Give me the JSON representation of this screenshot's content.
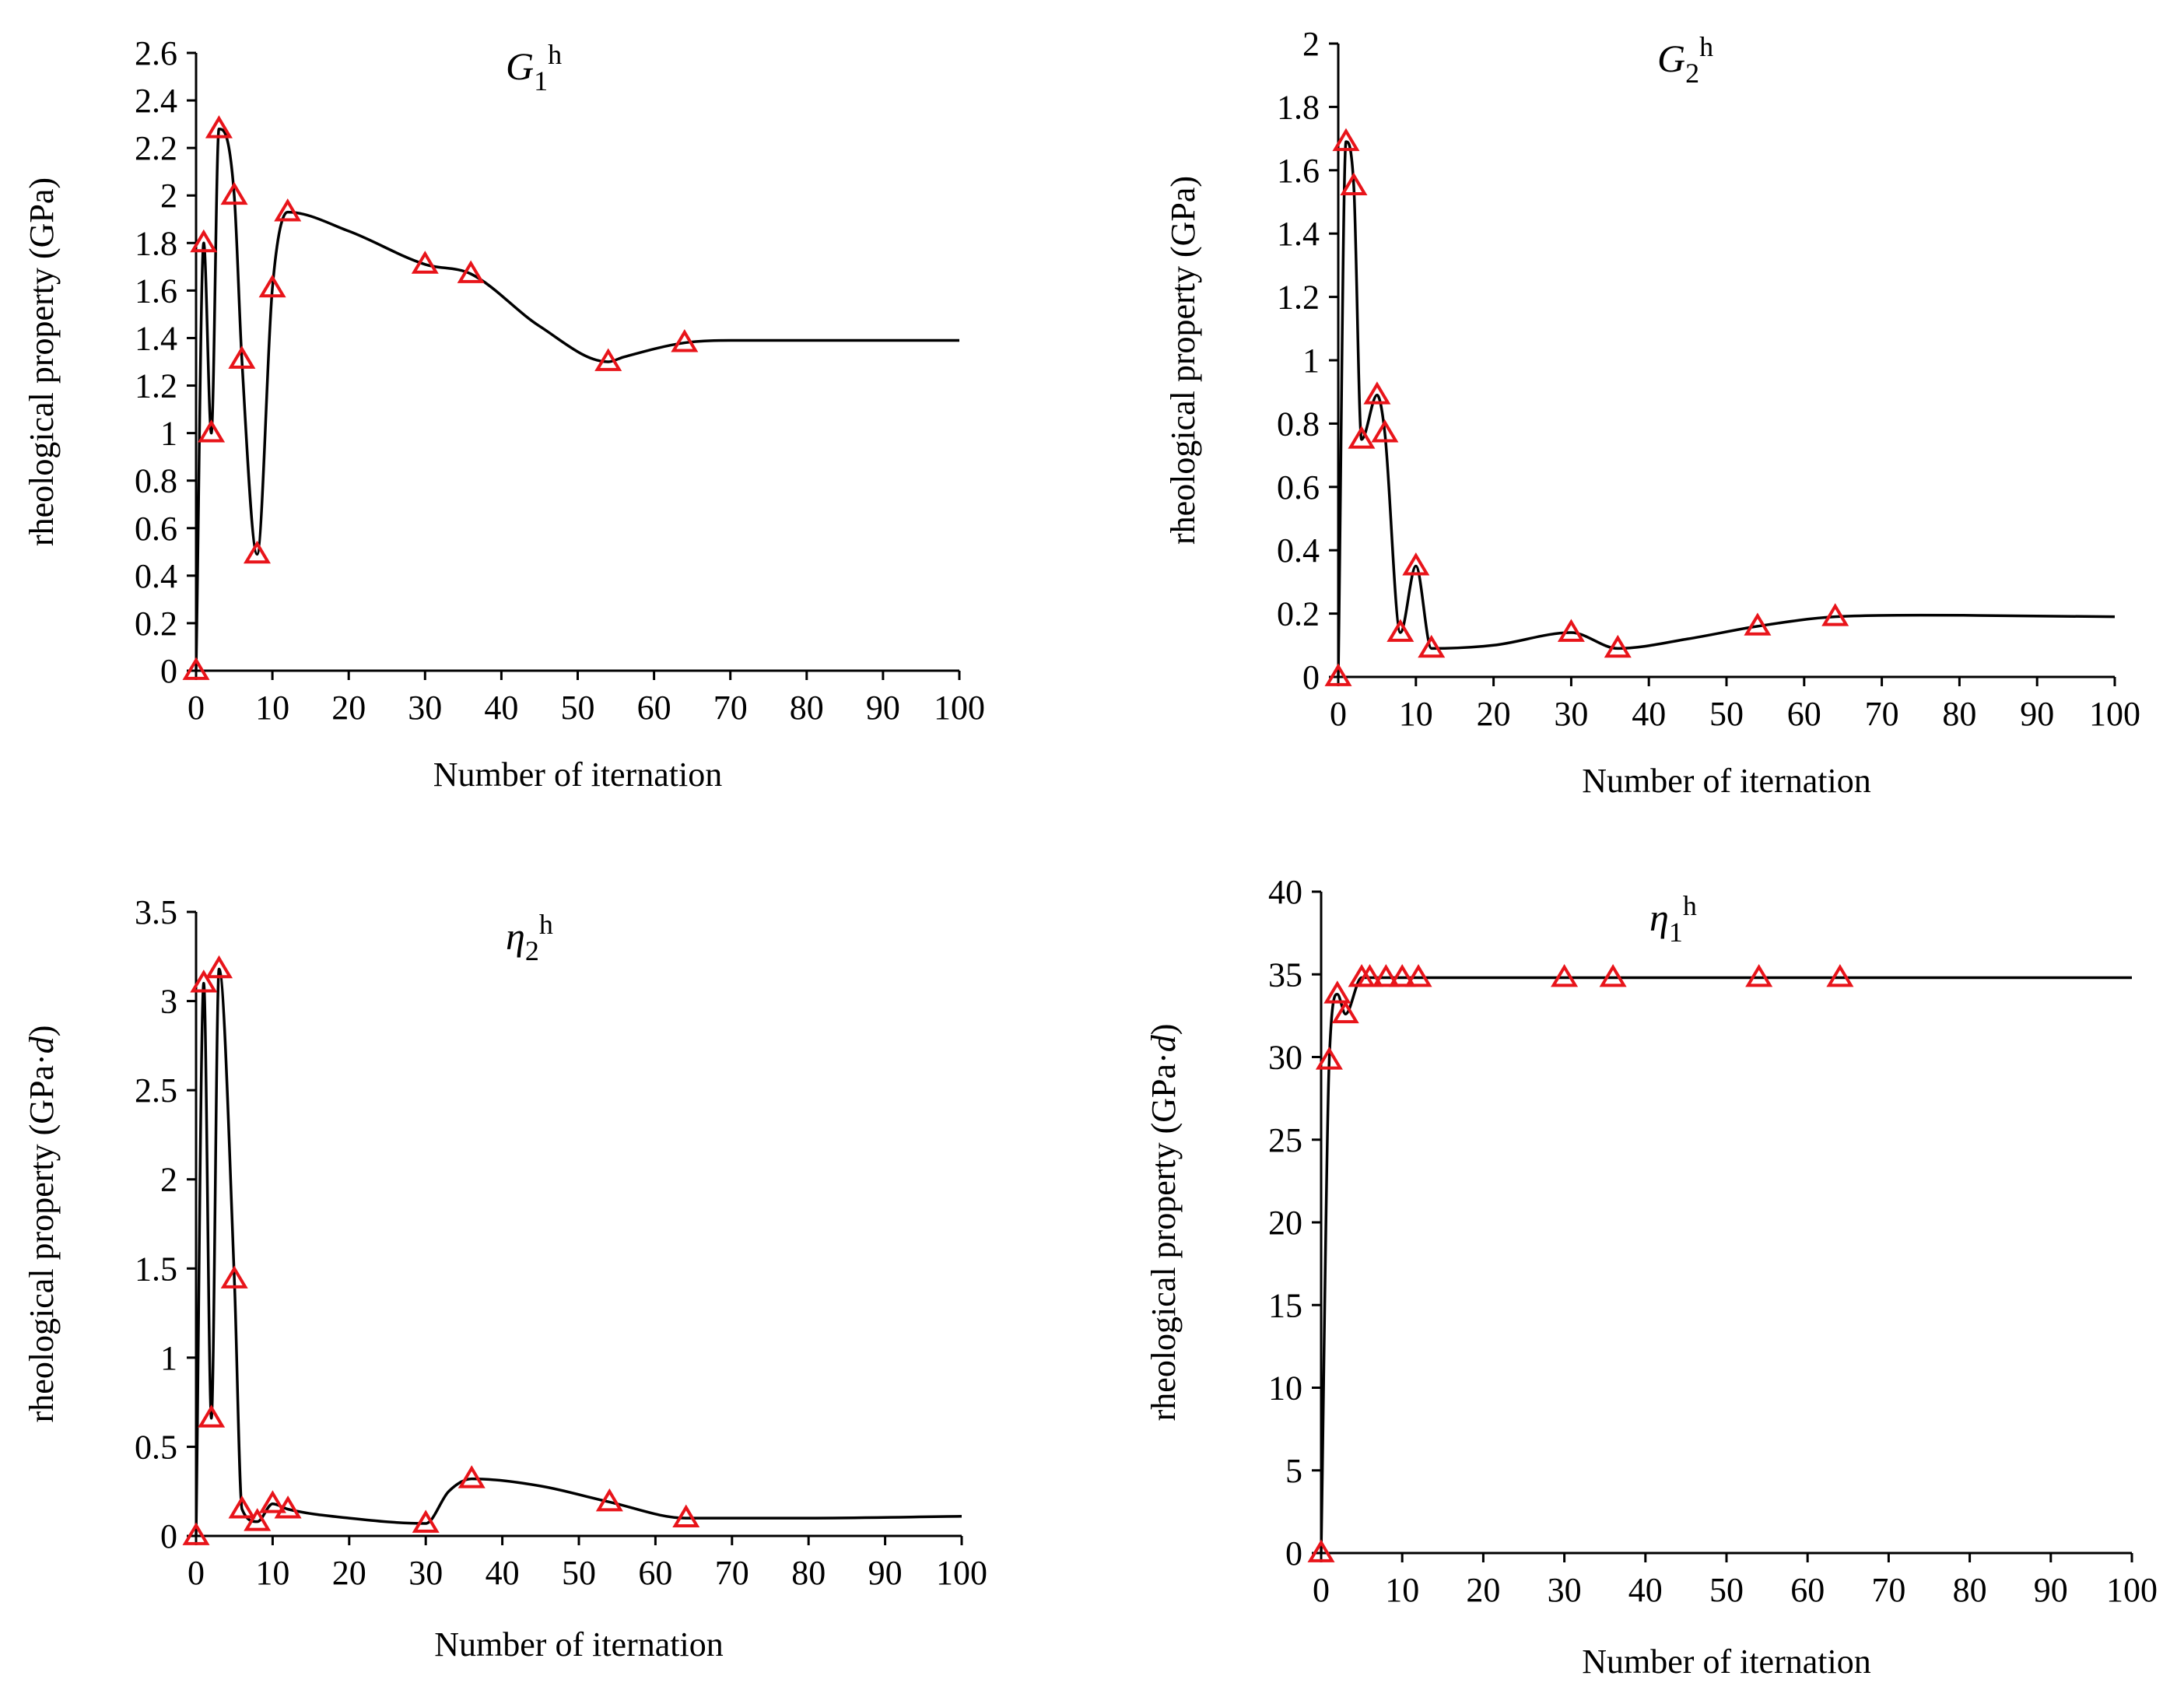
{
  "chart_data": [
    {
      "type": "line",
      "title": "G1h",
      "title_parts": {
        "symbol": "G",
        "subscript": "1",
        "superscript": "h"
      },
      "xlabel": "Number of iternation",
      "ylabel": "rheological property (GPa)",
      "xlim": [
        0,
        100
      ],
      "ylim": [
        0,
        2.6
      ],
      "xticks": [
        "0",
        "10",
        "20",
        "30",
        "40",
        "50",
        "60",
        "70",
        "80",
        "90",
        "100"
      ],
      "yticks": [
        "0",
        "0.2",
        "0.4",
        "0.6",
        "0.8",
        "1",
        "1.2",
        "1.4",
        "1.6",
        "1.8",
        "2",
        "2.2",
        "2.4",
        "2.6"
      ],
      "series": [
        {
          "name": "G1h",
          "marker": "triangle",
          "marker_color": "#e8141a",
          "line_color": "#000000",
          "points": {
            "x": [
              0,
              1,
              2,
              3,
              5,
              6,
              8,
              10,
              12,
              30,
              36,
              54,
              64
            ],
            "y": [
              0,
              1.8,
              1.0,
              2.28,
              2.0,
              1.31,
              0.49,
              1.61,
              1.93,
              1.71,
              1.67,
              1.3,
              1.38
            ]
          },
          "line": {
            "x": [
              0,
              1,
              2,
              3,
              5,
              6,
              8,
              10,
              12,
              20,
              30,
              36,
              45,
              54,
              56,
              64,
              70,
              80,
              90,
              100
            ],
            "y": [
              0,
              1.8,
              1.0,
              2.28,
              2.0,
              1.31,
              0.49,
              1.61,
              1.93,
              1.85,
              1.71,
              1.67,
              1.45,
              1.3,
              1.32,
              1.38,
              1.39,
              1.39,
              1.39,
              1.39
            ]
          }
        }
      ]
    },
    {
      "type": "line",
      "title": "G2h",
      "title_parts": {
        "symbol": "G",
        "subscript": "2",
        "superscript": "h"
      },
      "xlabel": "Number of iternation",
      "ylabel": "rheological property (GPa)",
      "xlim": [
        0,
        100
      ],
      "ylim": [
        0,
        2
      ],
      "xticks": [
        "0",
        "10",
        "20",
        "30",
        "40",
        "50",
        "60",
        "70",
        "80",
        "90",
        "100"
      ],
      "yticks": [
        "0",
        "0.2",
        "0.4",
        "0.6",
        "0.8",
        "1",
        "1.2",
        "1.4",
        "1.6",
        "1.8",
        "2"
      ],
      "series": [
        {
          "name": "G2h",
          "marker": "triangle",
          "marker_color": "#e8141a",
          "line_color": "#000000",
          "points": {
            "x": [
              0,
              1,
              2,
              3,
              5,
              6,
              8,
              10,
              12,
              30,
              36,
              54,
              64
            ],
            "y": [
              0,
              1.69,
              1.55,
              0.75,
              0.89,
              0.77,
              0.14,
              0.35,
              0.09,
              0.14,
              0.09,
              0.16,
              0.19
            ]
          },
          "line": {
            "x": [
              0,
              1,
              2,
              3,
              5,
              6,
              8,
              10,
              12,
              20,
              30,
              36,
              45,
              54,
              64,
              75,
              100
            ],
            "y": [
              0,
              1.69,
              1.55,
              0.75,
              0.89,
              0.77,
              0.14,
              0.35,
              0.09,
              0.1,
              0.14,
              0.09,
              0.12,
              0.16,
              0.19,
              0.195,
              0.19
            ]
          }
        }
      ]
    },
    {
      "type": "line",
      "title": "η2h",
      "title_parts": {
        "symbol": "η",
        "subscript": "2",
        "superscript": "h"
      },
      "xlabel": "Number of iternation",
      "ylabel": "rheological property (GPa·d)",
      "ylabel_parts": {
        "prefix": "rheological property (GPa·",
        "italic": "d",
        "suffix": ")"
      },
      "xlim": [
        0,
        100
      ],
      "ylim": [
        0,
        3.5
      ],
      "xticks": [
        "0",
        "10",
        "20",
        "30",
        "40",
        "50",
        "60",
        "70",
        "80",
        "90",
        "100"
      ],
      "yticks": [
        "0",
        "0.5",
        "1",
        "1.5",
        "2",
        "2.5",
        "3",
        "3.5"
      ],
      "series": [
        {
          "name": "η2h",
          "marker": "triangle",
          "marker_color": "#e8141a",
          "line_color": "#000000",
          "points": {
            "x": [
              0,
              1,
              2,
              3,
              5,
              6,
              8,
              10,
              12,
              30,
              36,
              54,
              64
            ],
            "y": [
              0,
              3.1,
              0.66,
              3.18,
              1.44,
              0.15,
              0.08,
              0.18,
              0.15,
              0.07,
              0.32,
              0.19,
              0.1
            ]
          },
          "line": {
            "x": [
              0,
              1,
              2,
              3,
              5,
              6,
              8,
              10,
              12,
              20,
              30,
              33,
              36,
              45,
              54,
              64,
              70,
              80,
              100
            ],
            "y": [
              0,
              3.1,
              0.66,
              3.18,
              1.44,
              0.15,
              0.08,
              0.18,
              0.15,
              0.1,
              0.07,
              0.25,
              0.32,
              0.28,
              0.19,
              0.1,
              0.1,
              0.1,
              0.11
            ]
          }
        }
      ]
    },
    {
      "type": "line",
      "title": "η1h",
      "title_parts": {
        "symbol": "η",
        "subscript": "1",
        "superscript": "h"
      },
      "xlabel": "Number of iternation",
      "ylabel": "rheological property (GPa·d)",
      "ylabel_parts": {
        "prefix": "rheological property (GPa·",
        "italic": "d",
        "suffix": ")"
      },
      "xlim": [
        0,
        100
      ],
      "ylim": [
        0,
        40
      ],
      "xticks": [
        "0",
        "10",
        "20",
        "30",
        "40",
        "50",
        "60",
        "70",
        "80",
        "90",
        "100"
      ],
      "yticks": [
        "0",
        "5",
        "10",
        "15",
        "20",
        "25",
        "30",
        "35",
        "40"
      ],
      "series": [
        {
          "name": "η1h",
          "marker": "triangle",
          "marker_color": "#e8141a",
          "line_color": "#000000",
          "points": {
            "x": [
              0,
              1,
              2,
              3,
              5,
              6,
              8,
              10,
              12,
              30,
              36,
              54,
              64
            ],
            "y": [
              0,
              29.8,
              33.8,
              32.6,
              34.8,
              34.8,
              34.8,
              34.8,
              34.8,
              34.8,
              34.8,
              34.8,
              34.8
            ]
          },
          "line": {
            "x": [
              0,
              1,
              2,
              3,
              5,
              6,
              8,
              10,
              12,
              30,
              36,
              54,
              64,
              100
            ],
            "y": [
              0,
              29.8,
              33.8,
              32.6,
              34.8,
              34.8,
              34.8,
              34.8,
              34.8,
              34.8,
              34.8,
              34.8,
              34.8,
              34.8
            ]
          }
        }
      ]
    }
  ]
}
